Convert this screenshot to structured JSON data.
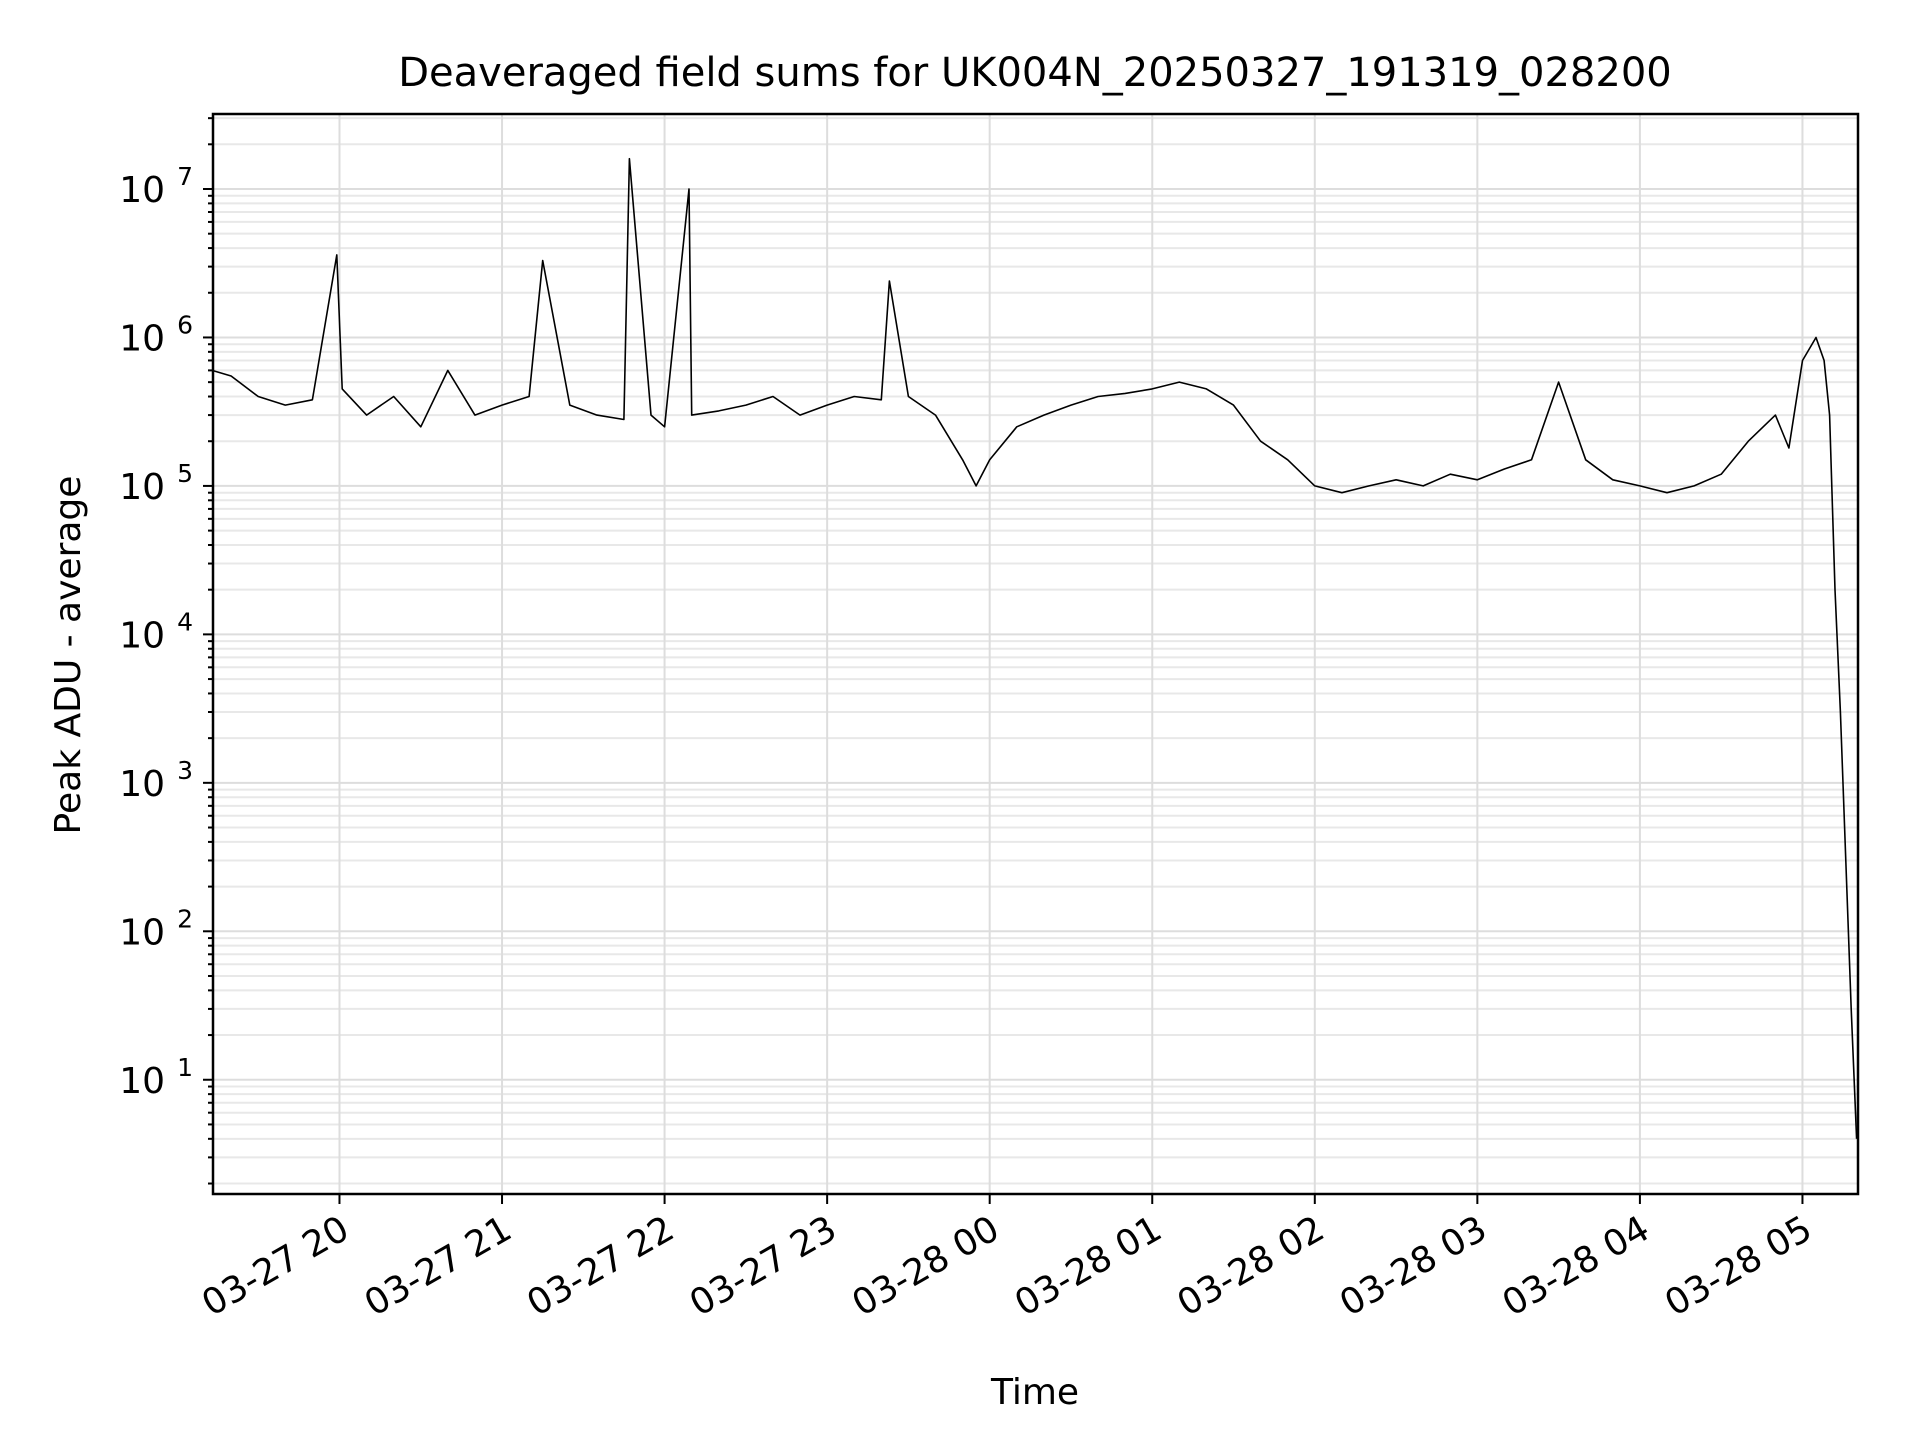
{
  "chart_data": {
    "type": "line",
    "title": "Deaveraged field sums for UK004N_20250327_191319_028200",
    "xlabel": "Time",
    "ylabel": "Peak ADU - average",
    "yscale": "log",
    "ylim": [
      1.7,
      32000000
    ],
    "xlim": [
      "2025-03-27 19:13:19",
      "2025-03-28 05:20:30"
    ],
    "grid": true,
    "line_color": "#000000",
    "x_tick_labels": [
      "03-27 20",
      "03-27 21",
      "03-27 22",
      "03-27 23",
      "03-28 00",
      "03-28 01",
      "03-28 02",
      "03-28 03",
      "03-28 04",
      "03-28 05"
    ],
    "x_ticks": [
      "2025-03-27 20:00",
      "2025-03-27 21:00",
      "2025-03-27 22:00",
      "2025-03-27 23:00",
      "2025-03-28 00:00",
      "2025-03-28 01:00",
      "2025-03-28 02:00",
      "2025-03-28 03:00",
      "2025-03-28 04:00",
      "2025-03-28 05:00"
    ],
    "y_ticks": [
      {
        "value": 10,
        "base": "10",
        "exp": "1"
      },
      {
        "value": 100,
        "base": "10",
        "exp": "2"
      },
      {
        "value": 1000,
        "base": "10",
        "exp": "3"
      },
      {
        "value": 10000,
        "base": "10",
        "exp": "4"
      },
      {
        "value": 100000,
        "base": "10",
        "exp": "5"
      },
      {
        "value": 1000000,
        "base": "10",
        "exp": "6"
      },
      {
        "value": 10000000,
        "base": "10",
        "exp": "7"
      }
    ],
    "series": [
      {
        "x": [
          "2025-03-27 19:13",
          "2025-03-27 19:20",
          "2025-03-27 19:30",
          "2025-03-27 19:40",
          "2025-03-27 19:50",
          "2025-03-27 19:59",
          "2025-03-27 20:01",
          "2025-03-27 20:10",
          "2025-03-27 20:20",
          "2025-03-27 20:30",
          "2025-03-27 20:40",
          "2025-03-27 20:50",
          "2025-03-27 21:00",
          "2025-03-27 21:10",
          "2025-03-27 21:15",
          "2025-03-27 21:25",
          "2025-03-27 21:35",
          "2025-03-27 21:45",
          "2025-03-27 21:47",
          "2025-03-27 21:55",
          "2025-03-27 22:00",
          "2025-03-27 22:09",
          "2025-03-27 22:10",
          "2025-03-27 22:20",
          "2025-03-27 22:30",
          "2025-03-27 22:40",
          "2025-03-27 22:50",
          "2025-03-27 23:00",
          "2025-03-27 23:10",
          "2025-03-27 23:20",
          "2025-03-27 23:23",
          "2025-03-27 23:30",
          "2025-03-27 23:40",
          "2025-03-27 23:50",
          "2025-03-27 23:55",
          "2025-03-28 00:00",
          "2025-03-28 00:10",
          "2025-03-28 00:20",
          "2025-03-28 00:30",
          "2025-03-28 00:40",
          "2025-03-28 00:50",
          "2025-03-28 01:00",
          "2025-03-28 01:10",
          "2025-03-28 01:20",
          "2025-03-28 01:30",
          "2025-03-28 01:40",
          "2025-03-28 01:50",
          "2025-03-28 02:00",
          "2025-03-28 02:10",
          "2025-03-28 02:20",
          "2025-03-28 02:30",
          "2025-03-28 02:40",
          "2025-03-28 02:50",
          "2025-03-28 03:00",
          "2025-03-28 03:10",
          "2025-03-28 03:20",
          "2025-03-28 03:30",
          "2025-03-28 03:40",
          "2025-03-28 03:50",
          "2025-03-28 04:00",
          "2025-03-28 04:10",
          "2025-03-28 04:20",
          "2025-03-28 04:30",
          "2025-03-28 04:40",
          "2025-03-28 04:50",
          "2025-03-28 04:55",
          "2025-03-28 05:00",
          "2025-03-28 05:05",
          "2025-03-28 05:08",
          "2025-03-28 05:10",
          "2025-03-28 05:12",
          "2025-03-28 05:14",
          "2025-03-28 05:16",
          "2025-03-28 05:18",
          "2025-03-28 05:20"
        ],
        "y": [
          600000,
          550000,
          400000,
          350000,
          380000,
          3600000,
          450000,
          300000,
          400000,
          250000,
          600000,
          300000,
          350000,
          400000,
          3300000,
          350000,
          300000,
          280000,
          16000000,
          300000,
          250000,
          10000000,
          300000,
          320000,
          350000,
          400000,
          300000,
          350000,
          400000,
          380000,
          2400000,
          400000,
          300000,
          150000,
          100000,
          150000,
          250000,
          300000,
          350000,
          400000,
          420000,
          450000,
          500000,
          450000,
          350000,
          200000,
          150000,
          100000,
          90000,
          100000,
          110000,
          100000,
          120000,
          110000,
          130000,
          150000,
          500000,
          150000,
          110000,
          100000,
          90000,
          100000,
          120000,
          200000,
          300000,
          180000,
          700000,
          1000000,
          700000,
          300000,
          20000,
          3000,
          300,
          30,
          4
        ]
      }
    ]
  }
}
